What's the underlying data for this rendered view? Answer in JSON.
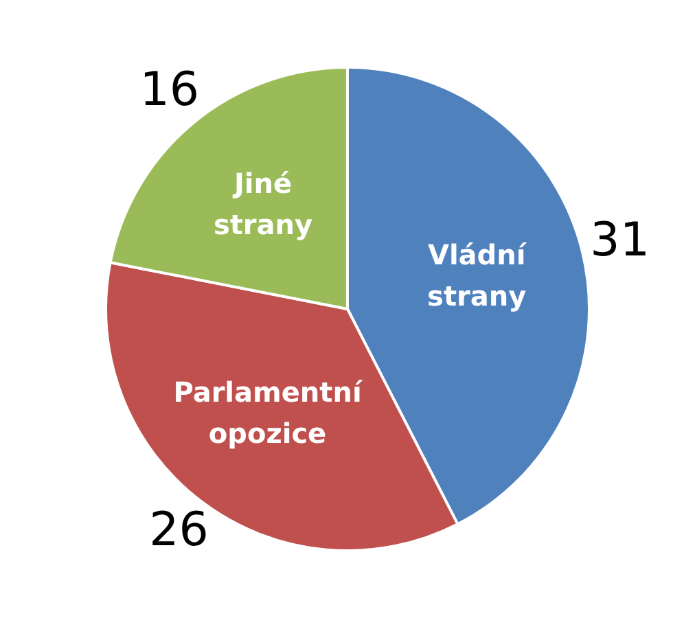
{
  "chart_data": {
    "type": "pie",
    "categories": [
      "Vládní strany",
      "Parlamentní opozice",
      "Jiné strany"
    ],
    "values": [
      31,
      26,
      16
    ],
    "colors": [
      "#4f81bd",
      "#c0504d",
      "#9bbb59"
    ],
    "data_labels": true,
    "legend": false
  }
}
